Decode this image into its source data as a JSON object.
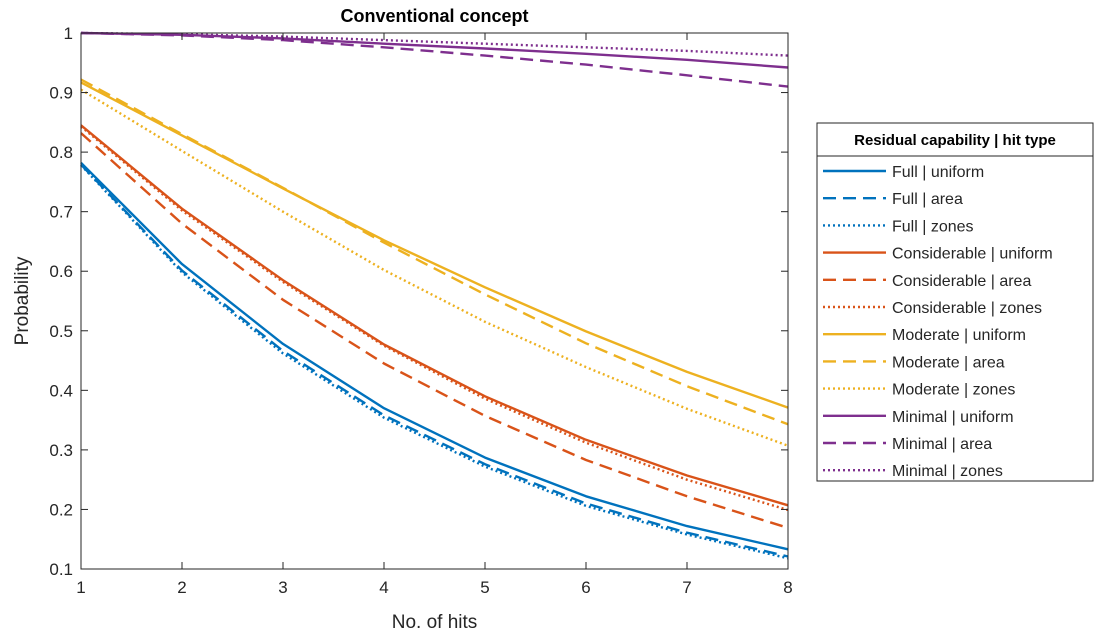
{
  "chart_data": {
    "type": "line",
    "title": "Conventional concept",
    "xlabel": "No. of hits",
    "ylabel": "Probability",
    "xlim": [
      1,
      8
    ],
    "ylim": [
      0.1,
      1
    ],
    "x": [
      1,
      2,
      3,
      4,
      5,
      6,
      7,
      8
    ],
    "xticks": [
      "1",
      "2",
      "3",
      "4",
      "5",
      "6",
      "7",
      "8"
    ],
    "yticks": [
      "0.1",
      "0.2",
      "0.3",
      "0.4",
      "0.5",
      "0.6",
      "0.7",
      "0.8",
      "0.9",
      "1"
    ],
    "grid": false,
    "legend": {
      "title": "Residual capability | hit type",
      "placement": "right outside"
    },
    "series": [
      {
        "name": "Full | uniform",
        "color": "#0072BD",
        "style": "solid",
        "values": [
          0.782,
          0.612,
          0.478,
          0.37,
          0.287,
          0.222,
          0.172,
          0.133
        ]
      },
      {
        "name": "Full | area",
        "color": "#0072BD",
        "style": "dashed",
        "values": [
          0.779,
          0.601,
          0.466,
          0.358,
          0.276,
          0.21,
          0.161,
          0.121
        ]
      },
      {
        "name": "Full | zones",
        "color": "#0072BD",
        "style": "dotted",
        "values": [
          0.778,
          0.598,
          0.462,
          0.354,
          0.272,
          0.206,
          0.158,
          0.118
        ]
      },
      {
        "name": "Considerable | uniform",
        "color": "#D95319",
        "style": "solid",
        "values": [
          0.845,
          0.705,
          0.585,
          0.477,
          0.39,
          0.317,
          0.257,
          0.207
        ]
      },
      {
        "name": "Considerable | area",
        "color": "#D95319",
        "style": "dashed",
        "values": [
          0.832,
          0.68,
          0.552,
          0.445,
          0.357,
          0.283,
          0.222,
          0.169
        ]
      },
      {
        "name": "Considerable | zones",
        "color": "#D95319",
        "style": "dotted",
        "values": [
          0.843,
          0.702,
          0.582,
          0.475,
          0.386,
          0.312,
          0.25,
          0.199
        ]
      },
      {
        "name": "Moderate | uniform",
        "color": "#EDB120",
        "style": "solid",
        "values": [
          0.917,
          0.828,
          0.739,
          0.652,
          0.573,
          0.499,
          0.431,
          0.371
        ]
      },
      {
        "name": "Moderate | area",
        "color": "#EDB120",
        "style": "dashed",
        "values": [
          0.922,
          0.83,
          0.74,
          0.648,
          0.561,
          0.479,
          0.407,
          0.343
        ]
      },
      {
        "name": "Moderate | zones",
        "color": "#EDB120",
        "style": "dotted",
        "values": [
          0.905,
          0.802,
          0.7,
          0.602,
          0.515,
          0.439,
          0.369,
          0.307
        ]
      },
      {
        "name": "Minimal | uniform",
        "color": "#7E2F8E",
        "style": "solid",
        "values": [
          1.0,
          0.997,
          0.991,
          0.982,
          0.974,
          0.965,
          0.955,
          0.942
        ]
      },
      {
        "name": "Minimal | area",
        "color": "#7E2F8E",
        "style": "dashed",
        "values": [
          1.0,
          0.996,
          0.988,
          0.976,
          0.962,
          0.947,
          0.929,
          0.91
        ]
      },
      {
        "name": "Minimal | zones",
        "color": "#7E2F8E",
        "style": "dotted",
        "values": [
          1.0,
          0.998,
          0.994,
          0.988,
          0.982,
          0.976,
          0.97,
          0.962
        ]
      }
    ]
  }
}
